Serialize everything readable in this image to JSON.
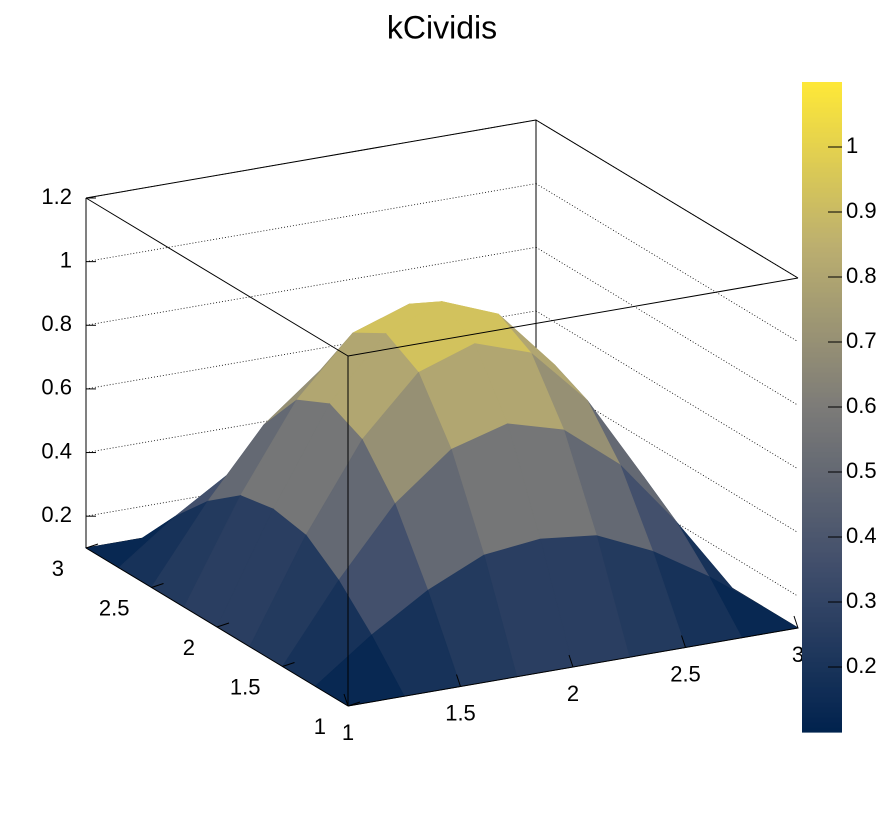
{
  "chart_data": {
    "type": "surface",
    "title": "kCividis",
    "x": [
      1,
      1.25,
      1.5,
      1.75,
      2,
      2.25,
      2.5,
      2.75,
      3
    ],
    "y": [
      1,
      1.25,
      1.5,
      1.75,
      2,
      2.25,
      2.5,
      2.75,
      3
    ],
    "z": [
      [
        0.1,
        0.1,
        0.1,
        0.1,
        0.1,
        0.1,
        0.1,
        0.1,
        0.1
      ],
      [
        0.1,
        0.23,
        0.34,
        0.42,
        0.44,
        0.42,
        0.34,
        0.23,
        0.1
      ],
      [
        0.1,
        0.34,
        0.55,
        0.69,
        0.74,
        0.69,
        0.55,
        0.34,
        0.1
      ],
      [
        0.1,
        0.42,
        0.69,
        0.87,
        0.93,
        0.87,
        0.69,
        0.42,
        0.1
      ],
      [
        0.1,
        0.44,
        0.74,
        0.93,
        1,
        0.93,
        0.74,
        0.44,
        0.1
      ],
      [
        0.1,
        0.42,
        0.69,
        0.87,
        0.93,
        0.87,
        0.69,
        0.42,
        0.1
      ],
      [
        0.1,
        0.34,
        0.55,
        0.69,
        0.74,
        0.69,
        0.55,
        0.34,
        0.1
      ],
      [
        0.1,
        0.23,
        0.34,
        0.42,
        0.44,
        0.42,
        0.34,
        0.23,
        0.1
      ],
      [
        0.1,
        0.1,
        0.1,
        0.1,
        0.1,
        0.1,
        0.1,
        0.1,
        0.1
      ]
    ],
    "xlim": [
      1,
      3
    ],
    "ylim": [
      1,
      3
    ],
    "zlim": [
      0.1,
      1.2
    ],
    "xticks": [
      1,
      1.5,
      2,
      2.5,
      3
    ],
    "yticks": [
      1,
      1.5,
      2,
      2.5,
      3
    ],
    "zticks": [
      0.2,
      0.4,
      0.6,
      0.8,
      1,
      1.2
    ],
    "colorbar_lim": [
      0.1,
      1.1
    ],
    "colorbar_ticks": [
      0.2,
      0.3,
      0.4,
      0.5,
      0.6,
      0.7,
      0.8,
      0.9,
      1
    ],
    "colormap": [
      "#00224e",
      "#3f4d6b",
      "#7c7b78",
      "#bcaf6f",
      "#fee838"
    ],
    "grid": true
  }
}
